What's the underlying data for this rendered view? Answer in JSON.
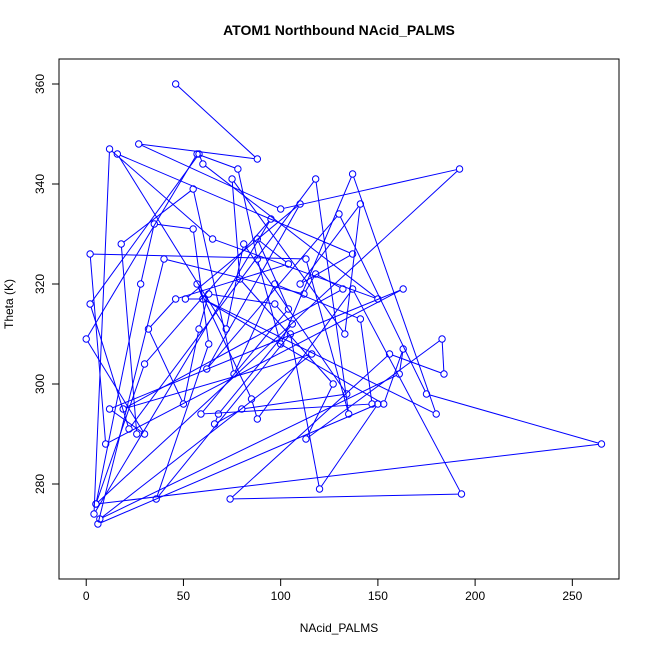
{
  "chart_data": {
    "type": "line",
    "title": "ATOM1 Northbound NAcid_PALMS",
    "xlabel": "NAcid_PALMS",
    "ylabel": "Theta (K)",
    "xlim": [
      -14,
      274
    ],
    "ylim": [
      261,
      365
    ],
    "xticks": [
      0,
      50,
      100,
      150,
      200,
      250
    ],
    "yticks": [
      280,
      300,
      320,
      340,
      360
    ],
    "grid": false,
    "legend": "none",
    "markers": "open-circle",
    "color": "#0000ff",
    "series": [
      {
        "x": [
          46,
          88,
          27,
          100,
          192,
          5,
          30,
          95,
          4,
          12,
          65,
          150,
          60,
          58,
          2,
          22,
          118,
          135,
          113,
          2,
          10,
          163,
          12,
          30,
          0,
          57,
          78,
          88,
          100,
          137,
          180,
          60,
          51,
          110,
          62,
          130,
          175,
          265,
          5,
          28,
          35,
          55,
          63,
          36,
          105,
          120,
          150,
          6,
          40,
          112,
          118,
          132,
          19,
          116,
          7,
          161,
          163,
          153,
          60,
          57,
          85,
          88,
          137,
          193,
          74,
          156,
          184,
          183,
          113,
          127,
          79,
          75,
          133,
          141,
          110,
          137,
          16,
          72,
          81,
          134,
          80,
          66,
          68,
          106,
          97,
          63,
          58,
          50,
          32,
          46,
          104,
          88,
          104,
          59,
          147,
          141,
          97,
          76,
          55,
          18,
          26
        ],
        "y": [
          360,
          345,
          348,
          335,
          343,
          276,
          304,
          333,
          274,
          347,
          329,
          317,
          344,
          346,
          316,
          291,
          341,
          294,
          325,
          326,
          288,
          319,
          295,
          290,
          309,
          346,
          343,
          325,
          308,
          342,
          294,
          317,
          317,
          336,
          303,
          334,
          298,
          288,
          276,
          320,
          332,
          331,
          308,
          277,
          310,
          279,
          296,
          272,
          325,
          318,
          322,
          319,
          295,
          306,
          273,
          302,
          307,
          296,
          317,
          320,
          297,
          293,
          319,
          278,
          277,
          306,
          302,
          309,
          289,
          300,
          321,
          341,
          310,
          336,
          320,
          326,
          346,
          311,
          328,
          298,
          295,
          292,
          294,
          312,
          316,
          318,
          311,
          296,
          311,
          317,
          324,
          329,
          315,
          294,
          296,
          313,
          320,
          302,
          339,
          328,
          290
        ]
      }
    ]
  }
}
